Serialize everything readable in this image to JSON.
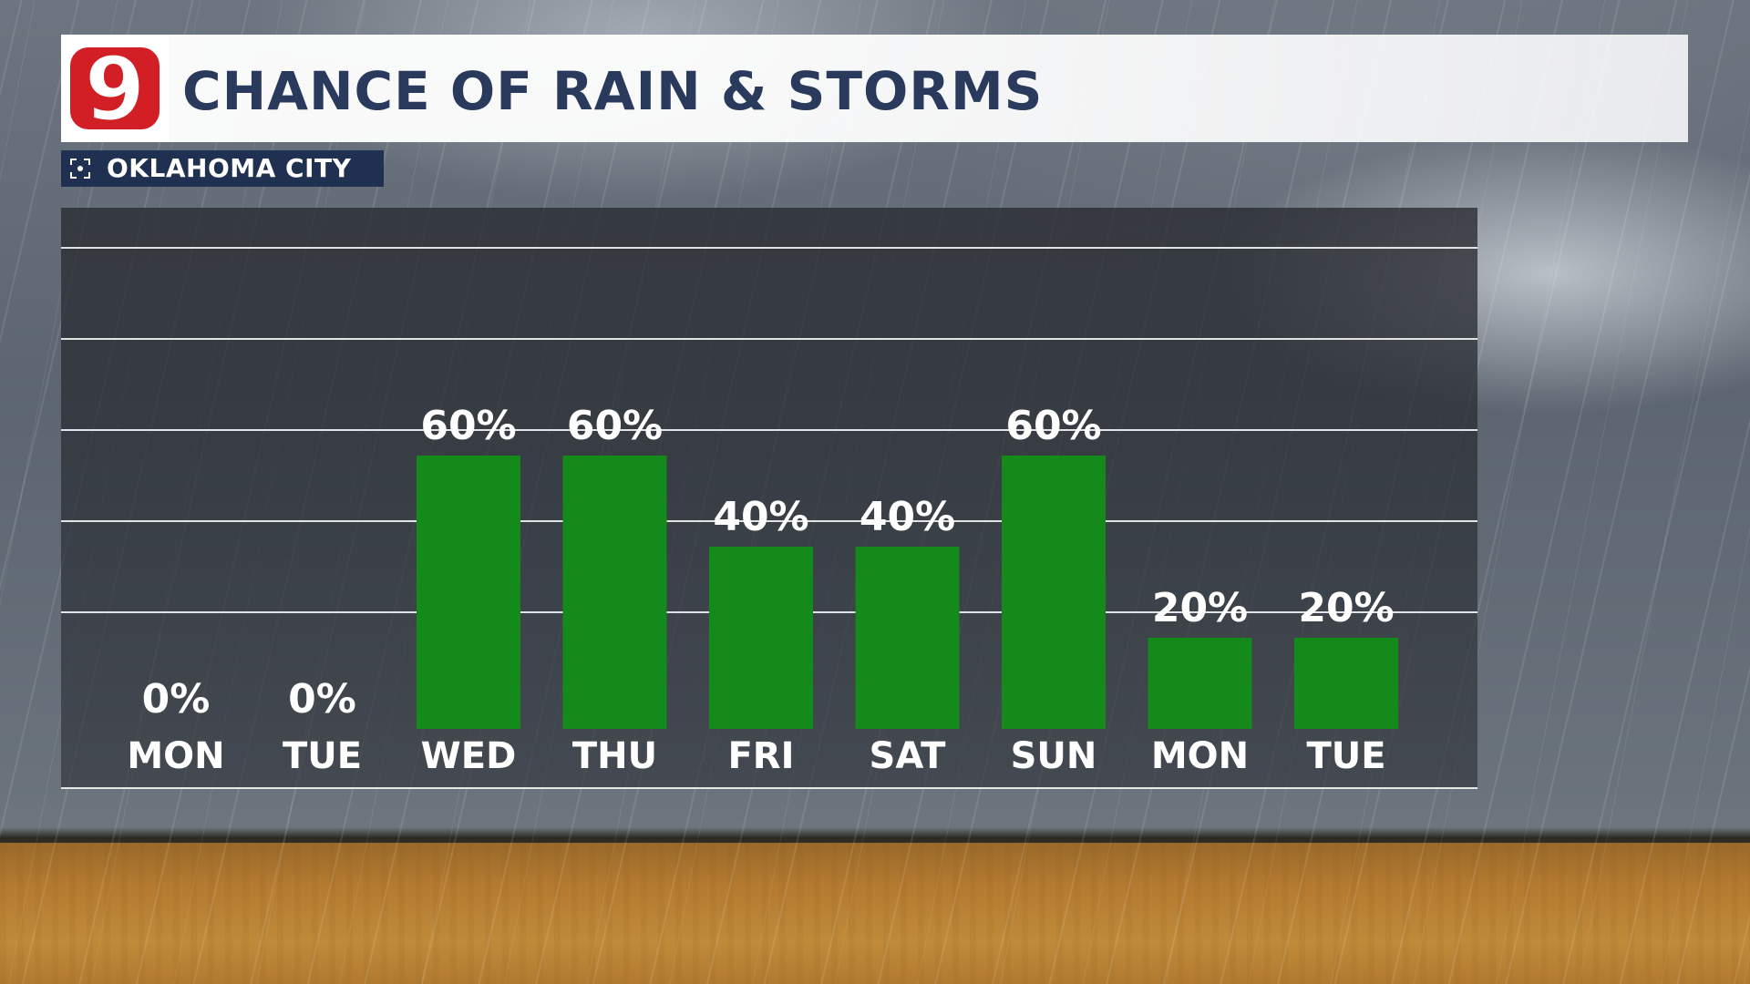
{
  "header": {
    "logo_text": "9",
    "title": "CHANCE OF RAIN & STORMS",
    "location": "OKLAHOMA CITY"
  },
  "colors": {
    "bar": "#138a19",
    "title": "#2a3a5c",
    "logo_red": "#d21f26",
    "location_bg": "#203050"
  },
  "icons": {
    "location": "focus-target-icon",
    "logo": "channel-9-logo-icon"
  },
  "chart_data": {
    "type": "bar",
    "title": "CHANCE OF RAIN & STORMS",
    "subtitle": "OKLAHOMA CITY",
    "categories": [
      "MON",
      "TUE",
      "WED",
      "THU",
      "FRI",
      "SAT",
      "SUN",
      "MON",
      "TUE"
    ],
    "values": [
      0,
      0,
      60,
      60,
      40,
      40,
      60,
      20,
      20
    ],
    "value_labels": [
      "0%",
      "0%",
      "60%",
      "60%",
      "40%",
      "40%",
      "60%",
      "20%",
      "20%"
    ],
    "unit": "%",
    "ylim": [
      0,
      100
    ],
    "grid": true,
    "legend": "none"
  }
}
